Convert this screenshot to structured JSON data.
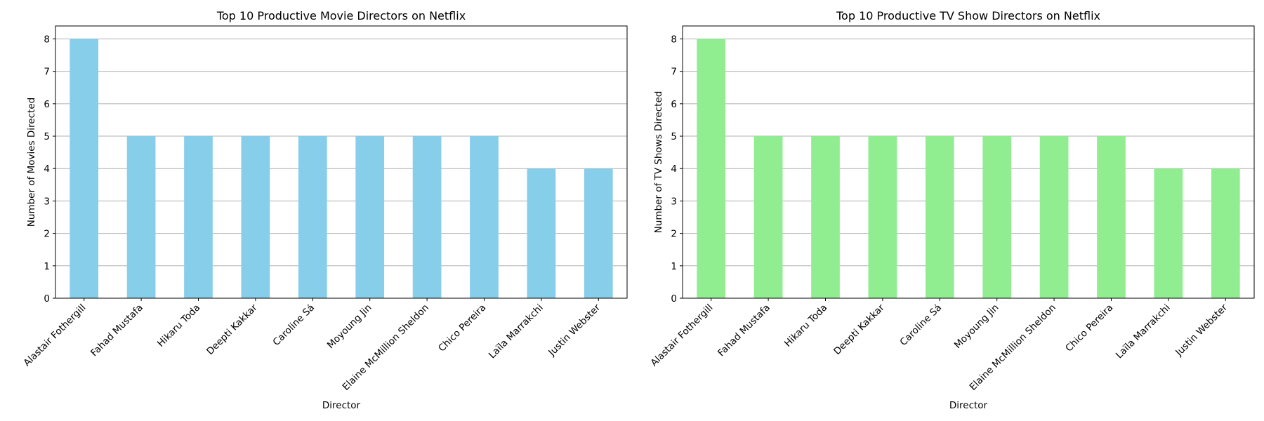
{
  "chart_data": [
    {
      "type": "bar",
      "title": "Top 10 Productive Movie Directors on Netflix",
      "xlabel": "Director",
      "ylabel": "Number of Movies Directed",
      "ylim": [
        0,
        8.4
      ],
      "yticks": [
        0,
        1,
        2,
        3,
        4,
        5,
        6,
        7,
        8
      ],
      "grid": "y",
      "bar_color": "#87ceeb",
      "categories": [
        "Alastair Fothergill",
        "Fahad Mustafa",
        "Hikaru Toda",
        "Deepti Kakkar",
        "Caroline Sá",
        "Moyoung Jin",
        "Elaine McMillion Sheldon",
        "Chico Pereira",
        "Laïla Marrakchi",
        "Justin Webster"
      ],
      "values": [
        8,
        5,
        5,
        5,
        5,
        5,
        5,
        5,
        4,
        4
      ]
    },
    {
      "type": "bar",
      "title": "Top 10 Productive TV Show Directors on Netflix",
      "xlabel": "Director",
      "ylabel": "Number of TV Shows Directed",
      "ylim": [
        0,
        8.4
      ],
      "yticks": [
        0,
        1,
        2,
        3,
        4,
        5,
        6,
        7,
        8
      ],
      "grid": "y",
      "bar_color": "#90ee90",
      "categories": [
        "Alastair Fothergill",
        "Fahad Mustafa",
        "Hikaru Toda",
        "Deepti Kakkar",
        "Caroline Sá",
        "Moyoung Jin",
        "Elaine McMillion Sheldon",
        "Chico Pereira",
        "Laïla Marrakchi",
        "Justin Webster"
      ],
      "values": [
        8,
        5,
        5,
        5,
        5,
        5,
        5,
        5,
        4,
        4
      ]
    }
  ]
}
